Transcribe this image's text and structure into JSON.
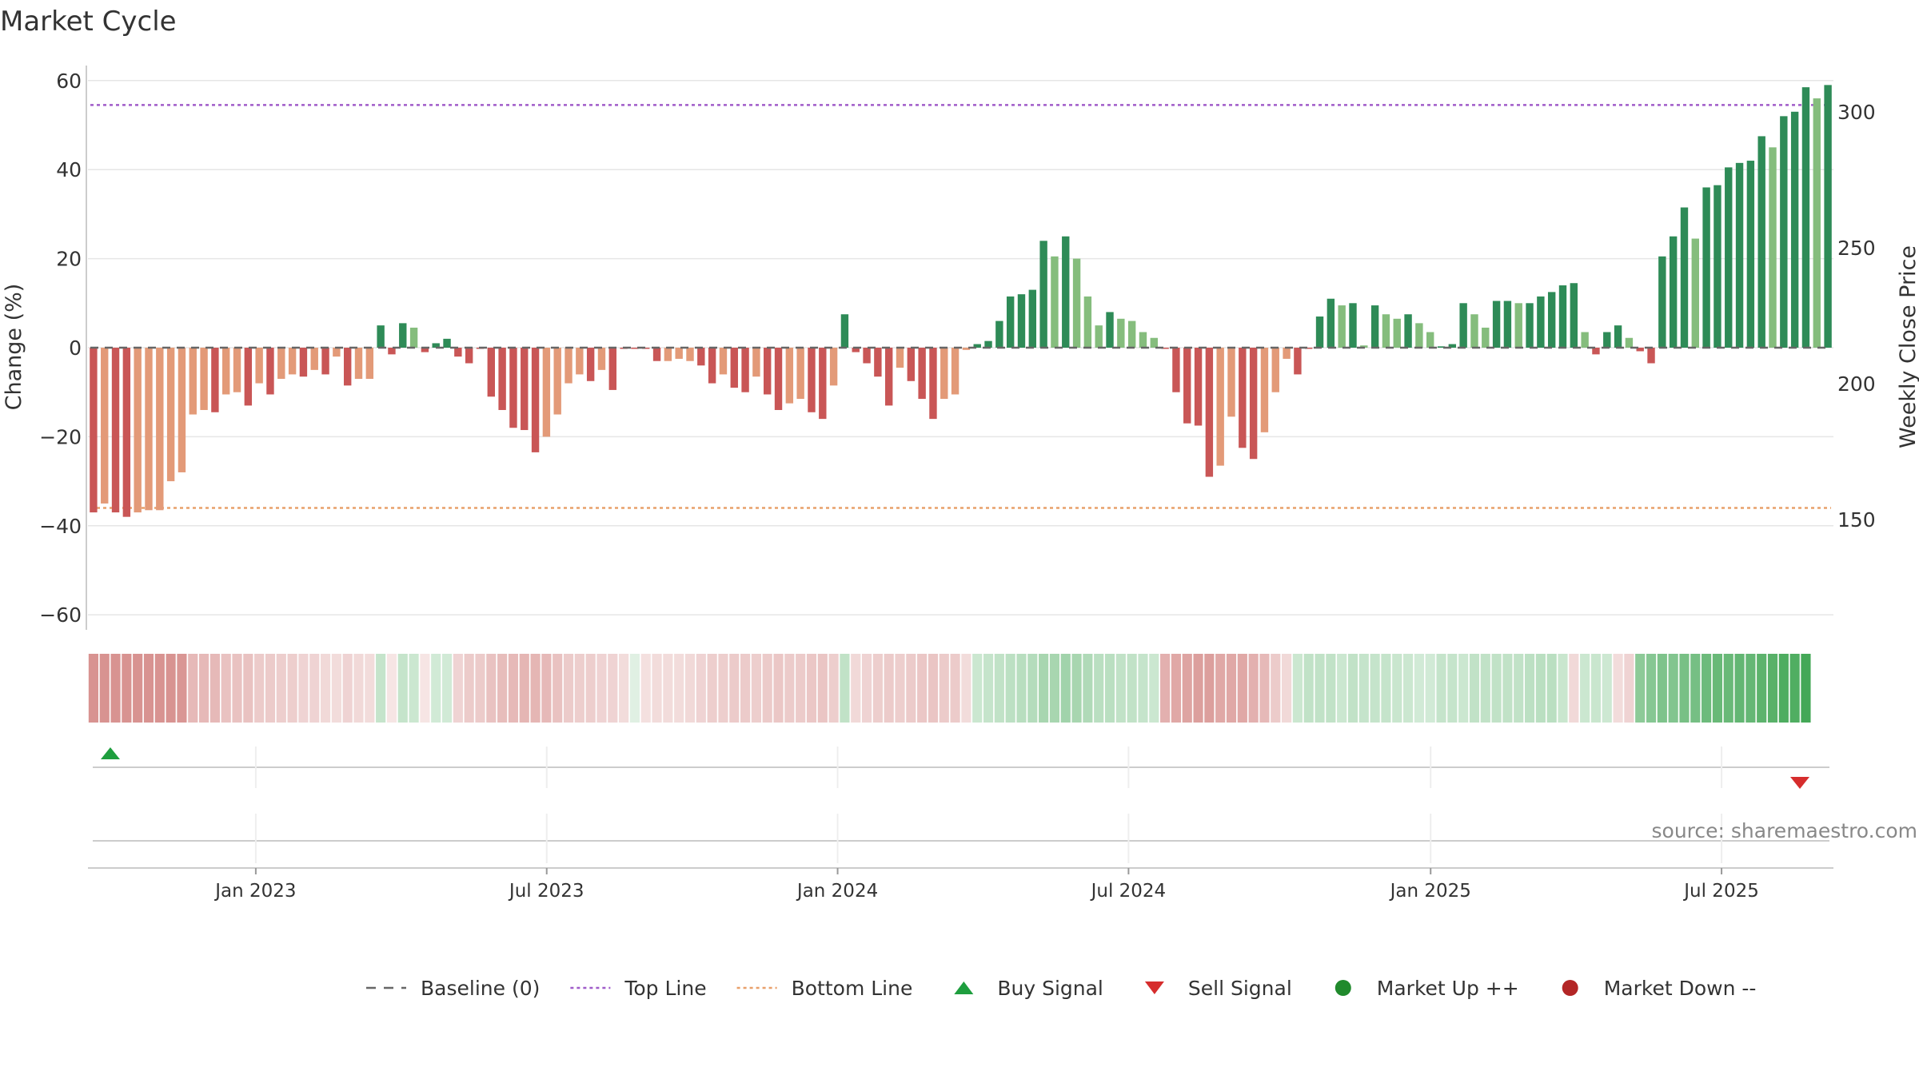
{
  "page": {
    "title": "Market Cycle",
    "source": "source: sharemaestro.com"
  },
  "colors": {
    "strong_red": "#c95656",
    "light_red": "#e39a78",
    "strong_green": "#2e8b57",
    "light_green": "#85bd7d",
    "top_line": "#a05cc9",
    "bottom_line": "#e8a06a",
    "baseline": "#666666",
    "buy": "#1e9e3e",
    "sell": "#d62d2d",
    "market_up": "#208a2c",
    "market_down": "#b32626",
    "grid": "#e6e6e6",
    "axis_text": "#333333"
  },
  "chart_data": {
    "type": "bar",
    "title": "Market Cycle",
    "ylabel": "Change (%)",
    "y2label": "Weekly Close Price",
    "ylim": [
      -60,
      60
    ],
    "yticks": [
      60,
      40,
      20,
      0,
      -20,
      -40,
      -60
    ],
    "ytick_labels": [
      "60",
      "40",
      "20",
      "0",
      "−20",
      "−40",
      "−60"
    ],
    "y2ticks": [
      300,
      250,
      200,
      150
    ],
    "y2ticks_labels": [
      "300",
      "250",
      "200",
      "150"
    ],
    "x_start": "2022-09-19",
    "x_end": "2025-09-15",
    "xtick_dates": [
      "2023-01-02",
      "2023-07-03",
      "2024-01-01",
      "2024-07-01",
      "2025-01-06",
      "2025-07-07"
    ],
    "xtick_labels": [
      "Jan 2023",
      "Jul 2023",
      "Jan 2024",
      "Jul 2024",
      "Jan 2025",
      "Jul 2025"
    ],
    "top_line": 54.5,
    "bottom_line": -36,
    "grid": true,
    "legend_position": "bottom",
    "values": [
      -37,
      -35,
      -37,
      -38,
      -37,
      -36.5,
      -36.5,
      -30,
      -28,
      -15,
      -14,
      -14.5,
      -10.5,
      -10,
      -13,
      -8,
      -10.5,
      -7,
      -6,
      -6.5,
      -5,
      -6,
      -2,
      -8.5,
      -7,
      -7,
      5,
      -1.5,
      5.5,
      4.5,
      -1,
      1,
      2,
      -2,
      -3.5,
      0,
      -11,
      -14,
      -18,
      -18.5,
      -23.5,
      -20,
      -15,
      -8,
      -6,
      -7.5,
      -5,
      -9.5,
      0,
      0,
      0,
      -3,
      -3,
      -2.5,
      -3,
      -4,
      -8,
      -6,
      -9,
      -10,
      -6.5,
      -10.5,
      -14,
      -12.5,
      -11.5,
      -14.5,
      -16,
      -8.5,
      7.5,
      -1,
      -3.5,
      -6.5,
      -13,
      -4.5,
      -7.5,
      -11.5,
      -16,
      -11.5,
      -10.5,
      -0.5,
      0.8,
      1.5,
      6,
      11.5,
      12,
      13,
      24,
      20.5,
      25,
      20,
      11.5,
      5,
      8,
      6.5,
      6,
      3.5,
      2.2,
      0,
      -10,
      -17,
      -17.5,
      -29,
      -26.5,
      -15.5,
      -22.5,
      -25,
      -19,
      -10,
      -2.5,
      -6,
      0,
      7,
      11,
      9.5,
      10,
      0.5,
      9.5,
      7.5,
      6.5,
      7.5,
      5.5,
      3.5,
      0.3,
      0.8,
      10,
      7.5,
      4.5,
      10.5,
      10.5,
      10,
      10,
      11.5,
      12.5,
      14,
      14.5,
      3.5,
      -1.5,
      3.5,
      5,
      2.2,
      -0.8,
      -3.5,
      20.5,
      25,
      31.5,
      24.5,
      36,
      36.5,
      40.5,
      41.5,
      42,
      47.5,
      45,
      52,
      53,
      58.5,
      56,
      59
    ],
    "colors": [
      "strong_red",
      "light_red",
      "strong_red",
      "strong_red",
      "light_red",
      "light_red",
      "light_red",
      "light_red",
      "light_red",
      "light_red",
      "light_red",
      "strong_red",
      "light_red",
      "light_red",
      "strong_red",
      "light_red",
      "strong_red",
      "light_red",
      "light_red",
      "strong_red",
      "light_red",
      "strong_red",
      "light_red",
      "strong_red",
      "light_red",
      "light_red",
      "strong_green",
      "strong_red",
      "strong_green",
      "light_green",
      "strong_red",
      "strong_green",
      "strong_green",
      "strong_red",
      "strong_red",
      "strong_red",
      "strong_red",
      "strong_red",
      "strong_red",
      "strong_red",
      "strong_red",
      "light_red",
      "light_red",
      "light_red",
      "light_red",
      "strong_red",
      "light_red",
      "strong_red",
      "strong_red",
      "strong_red",
      "strong_red",
      "strong_red",
      "light_red",
      "light_red",
      "light_red",
      "strong_red",
      "strong_red",
      "light_red",
      "strong_red",
      "strong_red",
      "light_red",
      "strong_red",
      "strong_red",
      "light_red",
      "light_red",
      "strong_red",
      "strong_red",
      "light_red",
      "strong_green",
      "strong_red",
      "strong_red",
      "strong_red",
      "strong_red",
      "light_red",
      "strong_red",
      "strong_red",
      "strong_red",
      "light_red",
      "light_red",
      "light_red",
      "strong_green",
      "strong_green",
      "strong_green",
      "strong_green",
      "strong_green",
      "strong_green",
      "strong_green",
      "light_green",
      "strong_green",
      "light_green",
      "light_green",
      "light_green",
      "strong_green",
      "light_green",
      "light_green",
      "light_green",
      "light_green",
      "strong_red",
      "strong_red",
      "strong_red",
      "strong_red",
      "strong_red",
      "light_red",
      "light_red",
      "strong_red",
      "strong_red",
      "light_red",
      "light_red",
      "light_red",
      "strong_red",
      "strong_red",
      "strong_green",
      "strong_green",
      "light_green",
      "strong_green",
      "light_green",
      "strong_green",
      "light_green",
      "light_green",
      "strong_green",
      "light_green",
      "light_green",
      "strong_green",
      "strong_green",
      "strong_green",
      "light_green",
      "light_green",
      "strong_green",
      "strong_green",
      "light_green",
      "strong_green",
      "strong_green",
      "strong_green",
      "strong_green",
      "strong_green",
      "light_green",
      "strong_red",
      "strong_green",
      "strong_green",
      "light_green",
      "strong_red",
      "strong_red",
      "strong_green",
      "strong_green",
      "strong_green",
      "light_green",
      "strong_green",
      "strong_green",
      "strong_green",
      "strong_green",
      "strong_green",
      "strong_green",
      "light_green",
      "strong_green",
      "strong_green",
      "strong_green",
      "light_green",
      "strong_green"
    ],
    "heat": [
      -0.62,
      -0.62,
      -0.62,
      -0.62,
      -0.62,
      -0.62,
      -0.62,
      -0.62,
      -0.6,
      -0.4,
      -0.4,
      -0.4,
      -0.35,
      -0.35,
      -0.35,
      -0.3,
      -0.3,
      -0.28,
      -0.28,
      -0.25,
      -0.25,
      -0.22,
      -0.2,
      -0.25,
      -0.22,
      -0.2,
      0.28,
      -0.15,
      0.28,
      0.25,
      -0.15,
      0.22,
      0.22,
      -0.25,
      -0.3,
      -0.3,
      -0.35,
      -0.38,
      -0.4,
      -0.42,
      -0.42,
      -0.4,
      -0.35,
      -0.3,
      -0.28,
      -0.28,
      -0.25,
      -0.25,
      -0.2,
      0.15,
      -0.18,
      -0.2,
      -0.2,
      -0.2,
      -0.22,
      -0.25,
      -0.28,
      -0.28,
      -0.3,
      -0.3,
      -0.28,
      -0.3,
      -0.32,
      -0.3,
      -0.3,
      -0.32,
      -0.33,
      -0.28,
      0.3,
      -0.22,
      -0.25,
      -0.28,
      -0.3,
      -0.28,
      -0.3,
      -0.32,
      -0.33,
      -0.3,
      -0.3,
      -0.2,
      0.25,
      0.28,
      0.3,
      0.32,
      0.34,
      0.36,
      0.42,
      0.42,
      0.45,
      0.42,
      0.38,
      0.33,
      0.33,
      0.3,
      0.3,
      0.28,
      0.25,
      -0.45,
      -0.5,
      -0.52,
      -0.55,
      -0.55,
      -0.5,
      -0.5,
      -0.5,
      -0.45,
      -0.4,
      -0.3,
      -0.22,
      0.25,
      0.3,
      0.3,
      0.3,
      0.25,
      0.3,
      0.28,
      0.28,
      0.28,
      0.26,
      0.25,
      0.22,
      0.22,
      0.28,
      0.28,
      0.25,
      0.3,
      0.3,
      0.3,
      0.3,
      0.3,
      0.32,
      0.33,
      0.33,
      0.26,
      -0.22,
      0.25,
      0.26,
      0.24,
      -0.2,
      -0.25,
      0.55,
      0.58,
      0.62,
      0.6,
      0.65,
      0.66,
      0.7,
      0.72,
      0.72,
      0.75,
      0.74,
      0.78,
      0.8,
      0.85,
      0.84,
      0.9
    ],
    "signals": [
      {
        "type": "buy",
        "date": "2022-10-03"
      },
      {
        "type": "sell",
        "date": "2025-08-25"
      }
    ]
  },
  "legend": [
    {
      "key": "baseline",
      "label": "Baseline (0)",
      "style": "dashed-line",
      "color": "baseline"
    },
    {
      "key": "top",
      "label": "Top Line",
      "style": "dotted-line",
      "color": "top_line"
    },
    {
      "key": "bottom",
      "label": "Bottom Line",
      "style": "dotted-line",
      "color": "bottom_line"
    },
    {
      "key": "buy",
      "label": "Buy Signal",
      "style": "triangle-up",
      "color": "buy"
    },
    {
      "key": "sell",
      "label": "Sell Signal",
      "style": "triangle-down",
      "color": "sell"
    },
    {
      "key": "up",
      "label": "Market Up ++",
      "style": "circle",
      "color": "market_up"
    },
    {
      "key": "down",
      "label": "Market Down --",
      "style": "circle",
      "color": "market_down"
    }
  ]
}
